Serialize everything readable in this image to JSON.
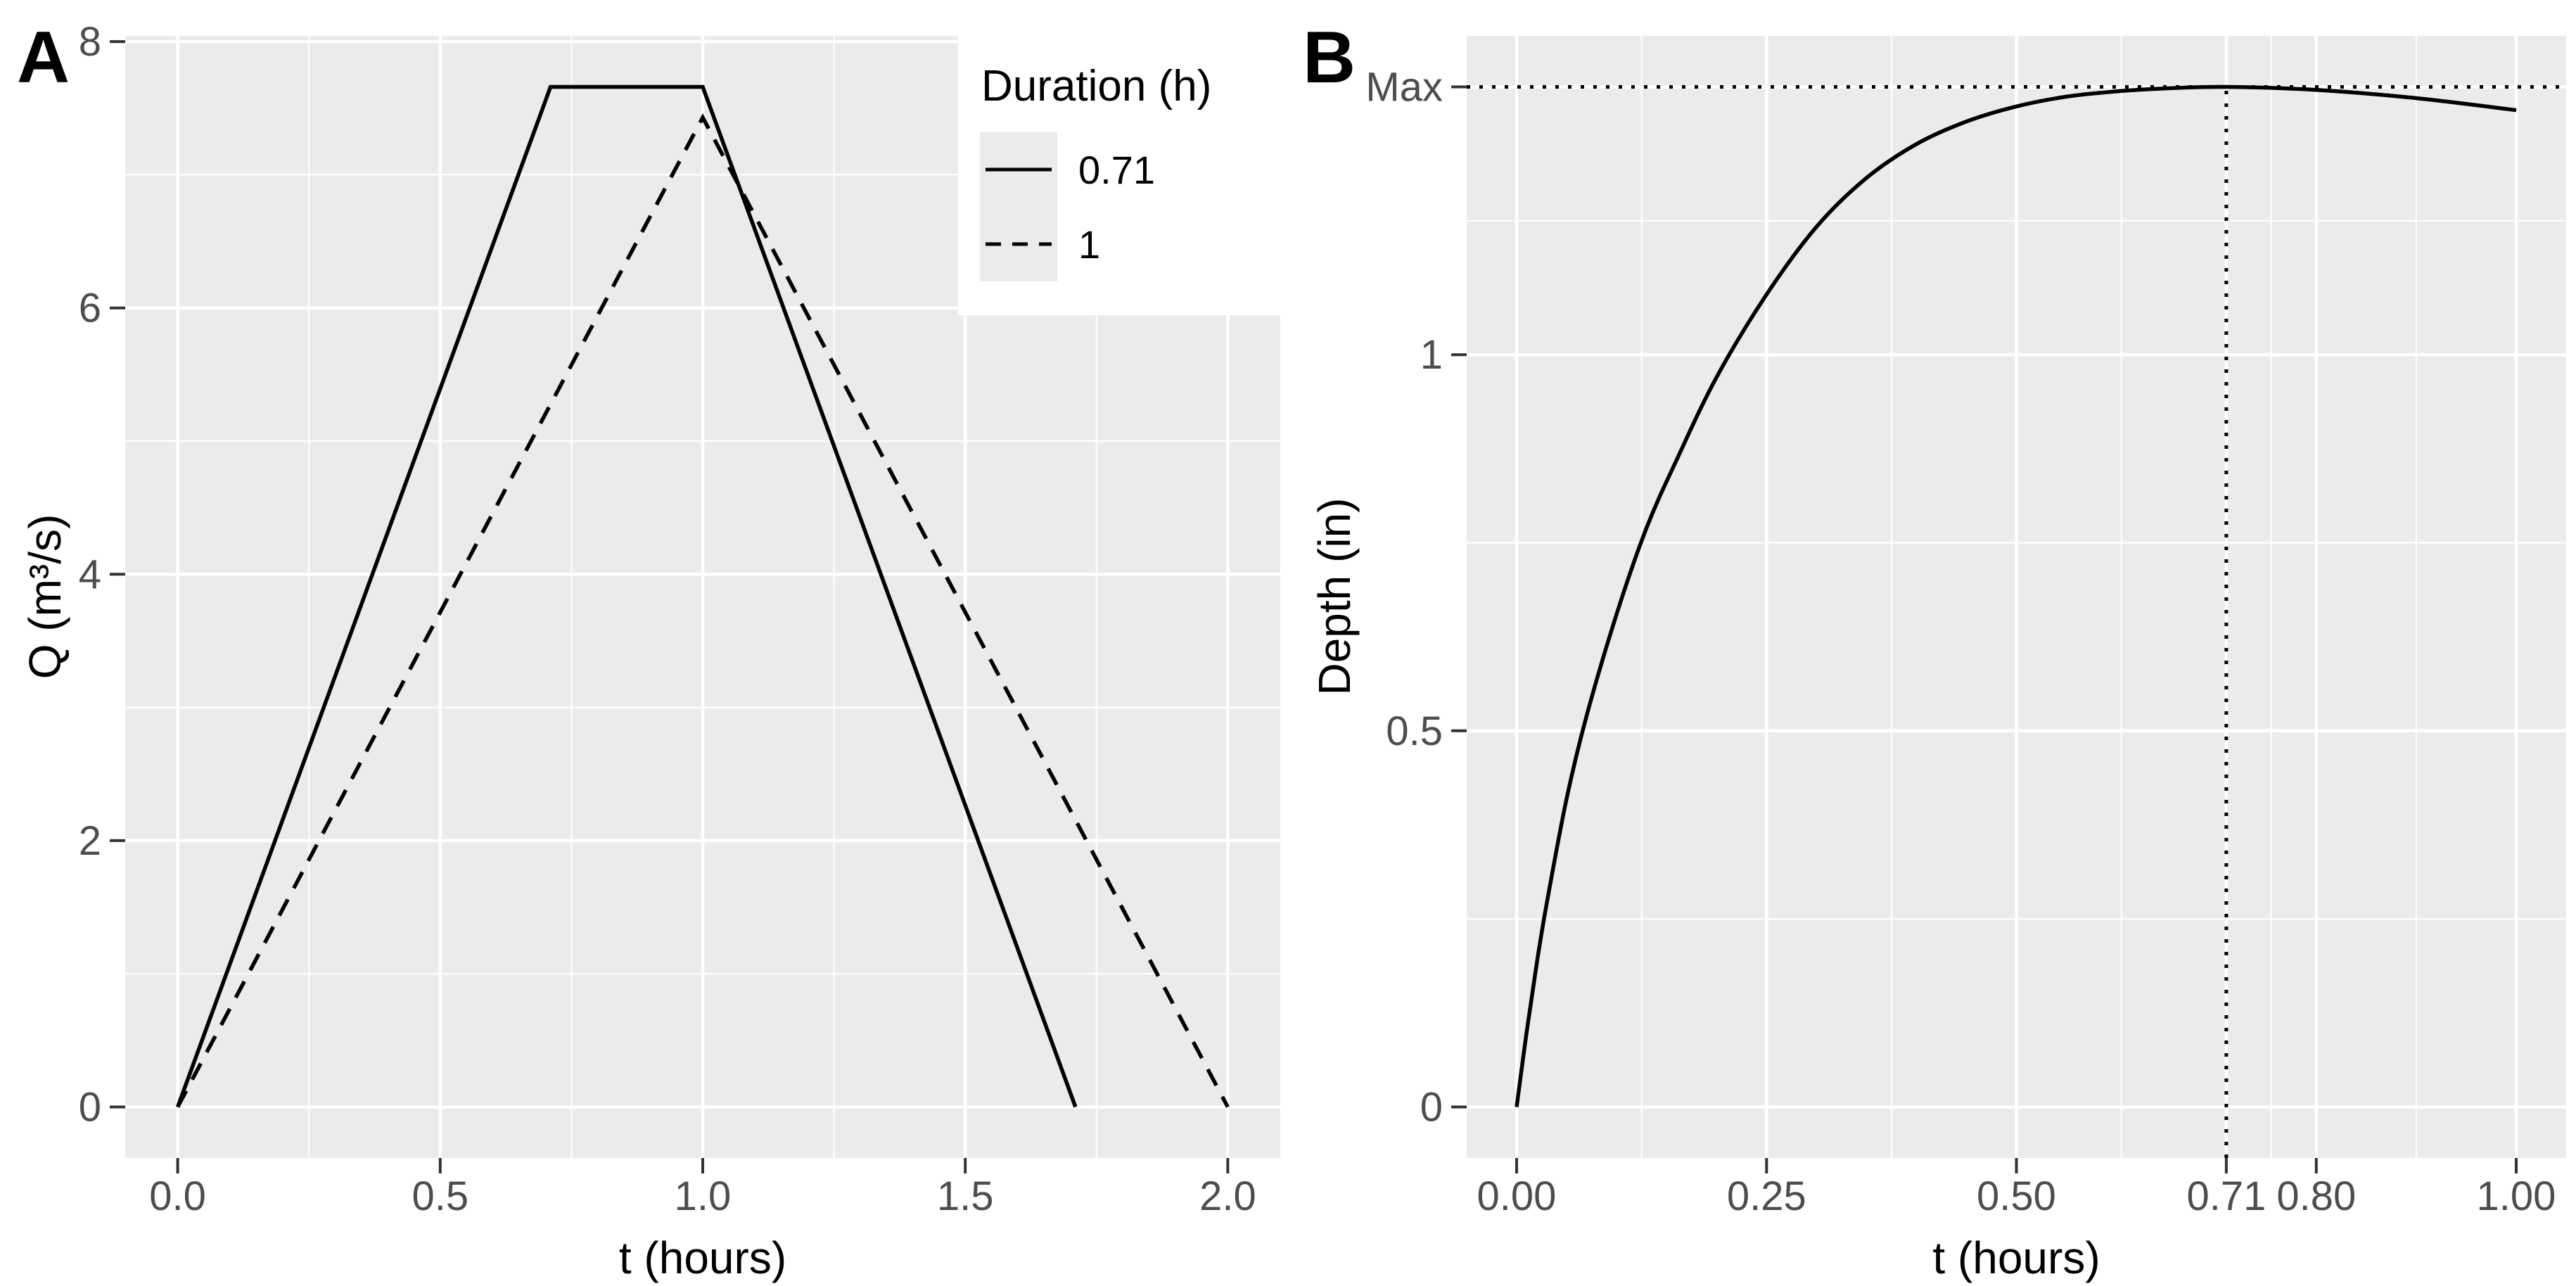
{
  "figure": {
    "panel_a_label": "A",
    "panel_b_label": "B"
  },
  "colors": {
    "panel_background": "#ebebeb",
    "gridline": "#ffffff",
    "tick_mark": "#333333",
    "tick_text": "#4d4d4d",
    "axis_title_text": "#000000",
    "series_line": "#000000",
    "legend_key_background": "#ebebeb"
  },
  "chart_data": [
    {
      "type": "line",
      "panel": "A",
      "title": "",
      "xlabel": "t (hours)",
      "ylabel": "Q (m³/s)",
      "xlim": [
        0,
        2
      ],
      "ylim": [
        0,
        7.66
      ],
      "grid": true,
      "x_ticks": {
        "values": [
          0,
          0.5,
          1,
          1.5,
          2
        ],
        "labels": [
          "0.0",
          "0.5",
          "1.0",
          "1.5",
          "2.0"
        ]
      },
      "x_minor": [
        0.25,
        0.75,
        1.25,
        1.75
      ],
      "y_ticks": {
        "values": [
          0,
          2,
          4,
          6,
          8
        ],
        "labels": [
          "0",
          "2",
          "4",
          "6",
          "8"
        ]
      },
      "y_minor": [
        1,
        3,
        5,
        7
      ],
      "legend": {
        "position": "top-right",
        "title": "Duration (h)",
        "entries": [
          {
            "label": "0.71",
            "linetype": "solid"
          },
          {
            "label": "1",
            "linetype": "dashed"
          }
        ]
      },
      "series": [
        {
          "name": "0.71",
          "linetype": "solid",
          "smooth": false,
          "points": [
            [
              0,
              0
            ],
            [
              0.71,
              7.66
            ],
            [
              1.0,
              7.66
            ],
            [
              1.71,
              0
            ]
          ]
        },
        {
          "name": "1",
          "linetype": "dashed",
          "smooth": false,
          "points": [
            [
              0,
              0
            ],
            [
              1.0,
              7.43
            ],
            [
              2.0,
              0
            ]
          ]
        }
      ],
      "annotations": []
    },
    {
      "type": "line",
      "panel": "B",
      "title": "",
      "xlabel": "t (hours)",
      "ylabel": "Depth (in)",
      "xlim": [
        0,
        1
      ],
      "ylim": [
        0,
        1.356
      ],
      "grid": true,
      "x_ticks": {
        "values": [
          0,
          0.25,
          0.5,
          0.71,
          0.8,
          1
        ],
        "labels": [
          "0.00",
          "0.25",
          "0.50",
          "0.71",
          "0.80",
          "1.00"
        ]
      },
      "x_minor": [
        0.125,
        0.375,
        0.605,
        0.755,
        0.9
      ],
      "y_ticks": {
        "values": [
          0,
          0.5,
          1,
          1.356
        ],
        "labels": [
          "0",
          "0.5",
          "1",
          "Max"
        ]
      },
      "y_minor": [
        0.25,
        0.75,
        1.178
      ],
      "max_depth_value": 1.356,
      "max_depth_time": 0.71,
      "series": [
        {
          "name": "depth",
          "linetype": "solid",
          "smooth": true,
          "points": [
            [
              0,
              0
            ],
            [
              0.01,
              0.1
            ],
            [
              0.02,
              0.19
            ],
            [
              0.03,
              0.27
            ],
            [
              0.05,
              0.41
            ],
            [
              0.07,
              0.52
            ],
            [
              0.1,
              0.655
            ],
            [
              0.13,
              0.77
            ],
            [
              0.16,
              0.86
            ],
            [
              0.2,
              0.97
            ],
            [
              0.25,
              1.08
            ],
            [
              0.3,
              1.17
            ],
            [
              0.35,
              1.235
            ],
            [
              0.4,
              1.28
            ],
            [
              0.45,
              1.31
            ],
            [
              0.5,
              1.33
            ],
            [
              0.55,
              1.343
            ],
            [
              0.6,
              1.35
            ],
            [
              0.65,
              1.354
            ],
            [
              0.71,
              1.356
            ],
            [
              0.8,
              1.352
            ],
            [
              0.9,
              1.341
            ],
            [
              1.0,
              1.325
            ]
          ]
        }
      ],
      "annotations": [
        {
          "type": "hline",
          "y": 1.356,
          "linetype": "dotted"
        },
        {
          "type": "vline",
          "x": 0.71,
          "y_from": "bottom",
          "y_to": 1.356,
          "linetype": "dotted"
        }
      ]
    }
  ]
}
